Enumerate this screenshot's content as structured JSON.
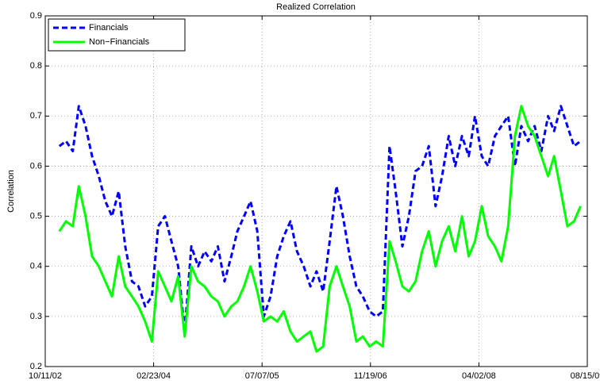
{
  "chart_data": {
    "type": "line",
    "title": "Realized Correlation",
    "y_label": "Correlation",
    "x": [
      "2002-12-15",
      "2003-01-15",
      "2003-02-15",
      "2003-03-15",
      "2003-04-15",
      "2003-05-15",
      "2003-06-15",
      "2003-07-15",
      "2003-08-15",
      "2003-09-15",
      "2003-10-15",
      "2003-11-15",
      "2003-12-15",
      "2004-01-15",
      "2004-02-15",
      "2004-03-15",
      "2004-04-15",
      "2004-05-15",
      "2004-06-15",
      "2004-07-15",
      "2004-08-15",
      "2004-09-15",
      "2004-10-15",
      "2004-11-15",
      "2004-12-15",
      "2005-01-15",
      "2005-02-15",
      "2005-03-15",
      "2005-04-15",
      "2005-05-15",
      "2005-06-15",
      "2005-07-15",
      "2005-08-15",
      "2005-09-15",
      "2005-10-15",
      "2005-11-15",
      "2005-12-15",
      "2006-01-15",
      "2006-02-15",
      "2006-03-15",
      "2006-04-15",
      "2006-05-15",
      "2006-06-15",
      "2006-07-15",
      "2006-08-15",
      "2006-09-15",
      "2006-10-15",
      "2006-11-15",
      "2006-12-15",
      "2007-01-15",
      "2007-02-15",
      "2007-03-15",
      "2007-04-15",
      "2007-05-15",
      "2007-06-15",
      "2007-07-15",
      "2007-08-15",
      "2007-09-15",
      "2007-10-15",
      "2007-11-15",
      "2007-12-15",
      "2008-01-15",
      "2008-02-15",
      "2008-03-15",
      "2008-04-15",
      "2008-05-15",
      "2008-06-15",
      "2008-07-15",
      "2008-08-15",
      "2008-09-15",
      "2008-10-15",
      "2008-11-15",
      "2008-12-15",
      "2009-01-15",
      "2009-02-15",
      "2009-03-15",
      "2009-04-15",
      "2009-05-15",
      "2009-06-15",
      "2009-07-15"
    ],
    "series": [
      {
        "name": "Financials",
        "color": "#0000ff",
        "style": "dashed",
        "values": [
          0.64,
          0.65,
          0.63,
          0.72,
          0.68,
          0.62,
          0.58,
          0.53,
          0.5,
          0.55,
          0.44,
          0.37,
          0.36,
          0.32,
          0.34,
          0.48,
          0.5,
          0.45,
          0.4,
          0.27,
          0.44,
          0.4,
          0.43,
          0.41,
          0.44,
          0.37,
          0.42,
          0.47,
          0.5,
          0.53,
          0.47,
          0.3,
          0.34,
          0.42,
          0.46,
          0.49,
          0.43,
          0.4,
          0.36,
          0.39,
          0.35,
          0.45,
          0.56,
          0.5,
          0.42,
          0.36,
          0.34,
          0.31,
          0.3,
          0.31,
          0.64,
          0.55,
          0.44,
          0.5,
          0.59,
          0.6,
          0.64,
          0.52,
          0.58,
          0.66,
          0.6,
          0.66,
          0.62,
          0.7,
          0.62,
          0.6,
          0.66,
          0.68,
          0.7,
          0.6,
          0.68,
          0.65,
          0.68,
          0.63,
          0.7,
          0.67,
          0.72,
          0.68,
          0.64,
          0.65
        ]
      },
      {
        "name": "Non−Financials",
        "color": "#00ff00",
        "style": "solid",
        "values": [
          0.47,
          0.49,
          0.48,
          0.56,
          0.5,
          0.42,
          0.4,
          0.37,
          0.34,
          0.42,
          0.36,
          0.34,
          0.32,
          0.29,
          0.25,
          0.39,
          0.36,
          0.33,
          0.38,
          0.26,
          0.4,
          0.37,
          0.36,
          0.34,
          0.33,
          0.3,
          0.32,
          0.33,
          0.36,
          0.4,
          0.35,
          0.29,
          0.3,
          0.29,
          0.31,
          0.27,
          0.25,
          0.26,
          0.27,
          0.23,
          0.24,
          0.36,
          0.4,
          0.36,
          0.32,
          0.25,
          0.26,
          0.24,
          0.25,
          0.24,
          0.45,
          0.41,
          0.36,
          0.35,
          0.37,
          0.43,
          0.47,
          0.4,
          0.45,
          0.48,
          0.43,
          0.5,
          0.42,
          0.45,
          0.52,
          0.46,
          0.44,
          0.41,
          0.48,
          0.66,
          0.72,
          0.68,
          0.66,
          0.62,
          0.58,
          0.62,
          0.55,
          0.48,
          0.49,
          0.52
        ]
      }
    ],
    "xlim": [
      "2002-10-11",
      "2009-08-15"
    ],
    "xticks": [
      {
        "value": "2002-10-11",
        "label": "10/11/02"
      },
      {
        "value": "2004-02-23",
        "label": "02/23/04"
      },
      {
        "value": "2005-07-07",
        "label": "07/07/05"
      },
      {
        "value": "2006-11-19",
        "label": "11/19/06"
      },
      {
        "value": "2008-04-02",
        "label": "04/02/08"
      },
      {
        "value": "2009-08-15",
        "label": "08/15/09"
      }
    ],
    "ylim": [
      0.2,
      0.9
    ],
    "yticks": [
      0.2,
      0.3,
      0.4,
      0.5,
      0.6,
      0.7,
      0.8,
      0.9
    ],
    "grid": true,
    "legend": "upper left"
  }
}
